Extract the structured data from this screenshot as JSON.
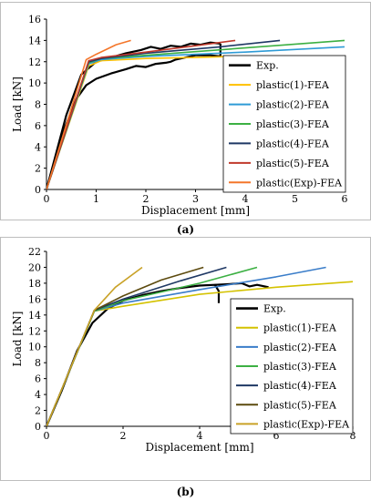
{
  "chart_data": [
    {
      "type": "line",
      "panel_label": "(a)",
      "xlabel": "Displacement [mm]",
      "ylabel": "Load [kN]",
      "xlim": [
        0,
        6
      ],
      "ylim": [
        0,
        16
      ],
      "xticks": [
        0,
        1,
        2,
        3,
        4,
        5,
        6
      ],
      "yticks": [
        0,
        2,
        4,
        6,
        8,
        10,
        12,
        14,
        16
      ],
      "grid": false,
      "legend_position": "right",
      "series": [
        {
          "name": "Exp.",
          "color": "#000000",
          "width": 2.2,
          "points": [
            [
              0,
              0
            ],
            [
              0.3,
              5.0
            ],
            [
              0.6,
              8.5
            ],
            [
              0.8,
              9.8
            ],
            [
              1.0,
              10.4
            ],
            [
              1.3,
              10.9
            ],
            [
              1.6,
              11.3
            ],
            [
              1.8,
              11.6
            ],
            [
              2.0,
              11.5
            ],
            [
              2.2,
              11.8
            ],
            [
              2.4,
              11.9
            ],
            [
              2.5,
              12.0
            ],
            [
              2.6,
              12.2
            ],
            [
              2.8,
              12.4
            ],
            [
              3.0,
              12.6
            ],
            [
              3.3,
              12.6
            ],
            [
              3.5,
              12.5
            ],
            [
              3.5,
              13.7
            ]
          ]
        },
        {
          "name": "Exp.",
          "color": "#000000",
          "width": 2.2,
          "points": [
            [
              0,
              0
            ],
            [
              0.4,
              7.0
            ],
            [
              0.7,
              10.8
            ],
            [
              1.0,
              12.0
            ],
            [
              1.3,
              12.4
            ],
            [
              1.6,
              12.8
            ],
            [
              1.9,
              13.1
            ],
            [
              2.1,
              13.4
            ],
            [
              2.3,
              13.2
            ],
            [
              2.5,
              13.5
            ],
            [
              2.7,
              13.4
            ],
            [
              2.9,
              13.7
            ],
            [
              3.1,
              13.6
            ],
            [
              3.3,
              13.8
            ],
            [
              3.5,
              13.7
            ]
          ]
        },
        {
          "name": "plastic(1)-FEA",
          "color": "#FFC000",
          "width": 1.6,
          "points": [
            [
              0,
              0
            ],
            [
              0.85,
              11.6
            ],
            [
              1.1,
              12.1
            ],
            [
              2.0,
              12.3
            ],
            [
              3.0,
              12.4
            ],
            [
              3.8,
              12.5
            ]
          ]
        },
        {
          "name": "plastic(2)-FEA",
          "color": "#2E9BD6",
          "width": 1.6,
          "points": [
            [
              0,
              0
            ],
            [
              0.85,
              11.8
            ],
            [
              1.1,
              12.2
            ],
            [
              2.0,
              12.5
            ],
            [
              4.0,
              12.9
            ],
            [
              6.0,
              13.4
            ]
          ]
        },
        {
          "name": "plastic(3)-FEA",
          "color": "#3CB043",
          "width": 1.6,
          "points": [
            [
              0,
              0
            ],
            [
              0.85,
              11.9
            ],
            [
              1.1,
              12.3
            ],
            [
              2.0,
              12.6
            ],
            [
              4.0,
              13.3
            ],
            [
              6.0,
              14.0
            ]
          ]
        },
        {
          "name": "plastic(4)-FEA",
          "color": "#1F3864",
          "width": 1.6,
          "points": [
            [
              0,
              0
            ],
            [
              0.85,
              12.0
            ],
            [
              1.1,
              12.3
            ],
            [
              2.0,
              12.8
            ],
            [
              3.5,
              13.4
            ],
            [
              4.7,
              14.0
            ]
          ]
        },
        {
          "name": "plastic(5)-FEA",
          "color": "#C0392B",
          "width": 1.6,
          "points": [
            [
              0,
              0
            ],
            [
              0.85,
              12.1
            ],
            [
              1.1,
              12.4
            ],
            [
              2.0,
              12.9
            ],
            [
              3.0,
              13.5
            ],
            [
              3.8,
              14.0
            ]
          ]
        },
        {
          "name": "plastic(Exp)-FEA",
          "color": "#F4762A",
          "width": 1.6,
          "points": [
            [
              0,
              0
            ],
            [
              0.8,
              12.2
            ],
            [
              1.0,
              12.7
            ],
            [
              1.4,
              13.6
            ],
            [
              1.7,
              14.0
            ]
          ]
        }
      ],
      "legend": [
        "Exp.",
        "plastic(1)-FEA",
        "plastic(2)-FEA",
        "plastic(3)-FEA",
        "plastic(4)-FEA",
        "plastic(5)-FEA",
        "plastic(Exp)-FEA"
      ]
    },
    {
      "type": "line",
      "panel_label": "(b)",
      "xlabel": "Displacement [mm]",
      "ylabel": "Load [kN]",
      "xlim": [
        0,
        8
      ],
      "ylim": [
        0,
        22
      ],
      "xticks": [
        0,
        2,
        4,
        6,
        8
      ],
      "yticks": [
        0,
        2,
        4,
        6,
        8,
        10,
        12,
        14,
        16,
        18,
        20,
        22
      ],
      "grid": false,
      "legend_position": "right",
      "series": [
        {
          "name": "Exp.",
          "color": "#000000",
          "width": 2.2,
          "points": [
            [
              0,
              0
            ],
            [
              0.4,
              4.5
            ],
            [
              0.8,
              9.5
            ],
            [
              1.2,
              13.0
            ],
            [
              1.6,
              14.8
            ],
            [
              2.0,
              15.8
            ],
            [
              2.5,
              16.5
            ],
            [
              3.0,
              17.0
            ],
            [
              3.5,
              17.4
            ],
            [
              4.0,
              17.7
            ],
            [
              4.4,
              17.8
            ],
            [
              4.5,
              17.0
            ],
            [
              4.5,
              15.5
            ]
          ]
        },
        {
          "name": "Exp.",
          "color": "#000000",
          "width": 2.2,
          "points": [
            [
              4.4,
              17.8
            ],
            [
              4.8,
              17.9
            ],
            [
              5.1,
              18.0
            ],
            [
              5.3,
              17.6
            ],
            [
              5.5,
              17.8
            ],
            [
              5.8,
              17.5
            ]
          ]
        },
        {
          "name": "plastic(1)-FEA",
          "color": "#D4C200",
          "width": 1.6,
          "points": [
            [
              0,
              0
            ],
            [
              1.25,
              14.5
            ],
            [
              2.0,
              15.1
            ],
            [
              4.0,
              16.6
            ],
            [
              6.0,
              17.5
            ],
            [
              8.0,
              18.2
            ]
          ]
        },
        {
          "name": "plastic(2)-FEA",
          "color": "#3A7DC9",
          "width": 1.6,
          "points": [
            [
              0,
              0
            ],
            [
              1.25,
              14.5
            ],
            [
              2.0,
              15.5
            ],
            [
              4.0,
              17.2
            ],
            [
              6.0,
              18.8
            ],
            [
              7.3,
              20.0
            ]
          ]
        },
        {
          "name": "plastic(3)-FEA",
          "color": "#3CB043",
          "width": 1.6,
          "points": [
            [
              0,
              0
            ],
            [
              1.25,
              14.5
            ],
            [
              2.0,
              15.8
            ],
            [
              4.0,
              18.0
            ],
            [
              5.5,
              20.0
            ]
          ]
        },
        {
          "name": "plastic(4)-FEA",
          "color": "#1F3864",
          "width": 1.6,
          "points": [
            [
              0,
              0
            ],
            [
              1.25,
              14.6
            ],
            [
              2.0,
              16.0
            ],
            [
              3.5,
              18.3
            ],
            [
              4.7,
              20.0
            ]
          ]
        },
        {
          "name": "plastic(5)-FEA",
          "color": "#5C4A0E",
          "width": 1.6,
          "points": [
            [
              0,
              0
            ],
            [
              1.25,
              14.6
            ],
            [
              2.0,
              16.4
            ],
            [
              3.0,
              18.4
            ],
            [
              4.1,
              20.0
            ]
          ]
        },
        {
          "name": "plastic(Exp)-FEA",
          "color": "#C9A227",
          "width": 1.6,
          "points": [
            [
              0,
              0
            ],
            [
              1.25,
              14.6
            ],
            [
              1.8,
              17.5
            ],
            [
              2.5,
              20.0
            ]
          ]
        }
      ],
      "legend": [
        "Exp.",
        "plastic(1)-FEA",
        "plastic(2)-FEA",
        "plastic(3)-FEA",
        "plastic(4)-FEA",
        "plastic(5)-FEA",
        "plastic(Exp)-FEA"
      ]
    }
  ],
  "captions": {
    "a": "(a)",
    "b": "(b)"
  }
}
